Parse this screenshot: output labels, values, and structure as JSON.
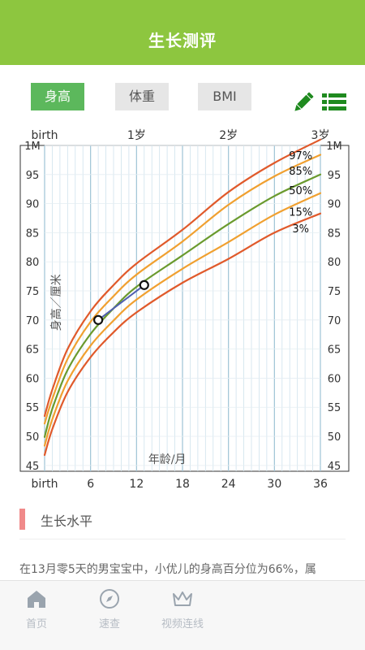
{
  "header": {
    "title": "生长测评"
  },
  "tabs": [
    {
      "label": "身高",
      "active": true
    },
    {
      "label": "体重",
      "active": false
    },
    {
      "label": "BMI",
      "active": false
    }
  ],
  "toolbar": {
    "edit_icon": "pencil-icon",
    "list_icon": "list-icon",
    "accent": "#1f8a1f"
  },
  "chart_data": {
    "type": "line",
    "top_labels": [
      "birth",
      "1岁",
      "2岁",
      "3岁"
    ],
    "x_ticks": [
      "birth",
      "6",
      "12",
      "18",
      "24",
      "30",
      "36"
    ],
    "xlabel": "年龄/月",
    "ylabel": "身高／厘米",
    "y_ticks": [
      "45",
      "50",
      "55",
      "60",
      "65",
      "70",
      "75",
      "80",
      "85",
      "90",
      "95",
      "1M"
    ],
    "xlim": [
      0,
      36
    ],
    "ylim": [
      44,
      100
    ],
    "grid": true,
    "colors": {
      "outer": "#e05a2b",
      "middle": "#f0a030",
      "median": "#6a9a2e",
      "points": "#5060b0"
    },
    "series": [
      {
        "name": "97%",
        "x": [
          0,
          1,
          3,
          6,
          9,
          12,
          18,
          24,
          30,
          36
        ],
        "values": [
          53.5,
          58,
          65,
          71.5,
          76,
          79.7,
          85.5,
          92,
          97,
          101
        ]
      },
      {
        "name": "85%",
        "x": [
          0,
          1,
          3,
          6,
          9,
          12,
          18,
          24,
          30,
          36
        ],
        "values": [
          52.2,
          56.4,
          63.3,
          69.7,
          74.1,
          77.8,
          83.5,
          89.8,
          94.7,
          98.4
        ]
      },
      {
        "name": "50%",
        "x": [
          0,
          1,
          3,
          6,
          9,
          12,
          18,
          24,
          30,
          36
        ],
        "values": [
          49.9,
          54.7,
          61.4,
          67.6,
          72,
          75.7,
          81.1,
          86.5,
          91.3,
          95
        ]
      },
      {
        "name": "15%",
        "x": [
          0,
          1,
          3,
          6,
          9,
          12,
          18,
          24,
          30,
          36
        ],
        "values": [
          48.4,
          52.9,
          59.5,
          65.6,
          69.9,
          73.5,
          78.8,
          83.4,
          88.1,
          91.8
        ]
      },
      {
        "name": "3%",
        "x": [
          0,
          1,
          3,
          6,
          9,
          12,
          18,
          24,
          30,
          36
        ],
        "values": [
          46.8,
          51.2,
          57.6,
          63.6,
          67.9,
          71.3,
          76.4,
          80.5,
          85,
          88.3
        ]
      }
    ],
    "measurements": {
      "x": [
        7,
        13
      ],
      "values": [
        70,
        76
      ]
    }
  },
  "section": {
    "title": "生长水平"
  },
  "result": {
    "text": "在13月零5天的男宝宝中，小优儿的身高百分位为66%，属"
  },
  "nav": [
    {
      "label": "首页",
      "icon": "home-icon"
    },
    {
      "label": "速查",
      "icon": "compass-icon"
    },
    {
      "label": "视频连线",
      "icon": "crown-icon"
    }
  ],
  "theme": {
    "brand": "#8dc63f",
    "tab_active": "#5cb85c",
    "section_marker": "#f08a8a"
  }
}
